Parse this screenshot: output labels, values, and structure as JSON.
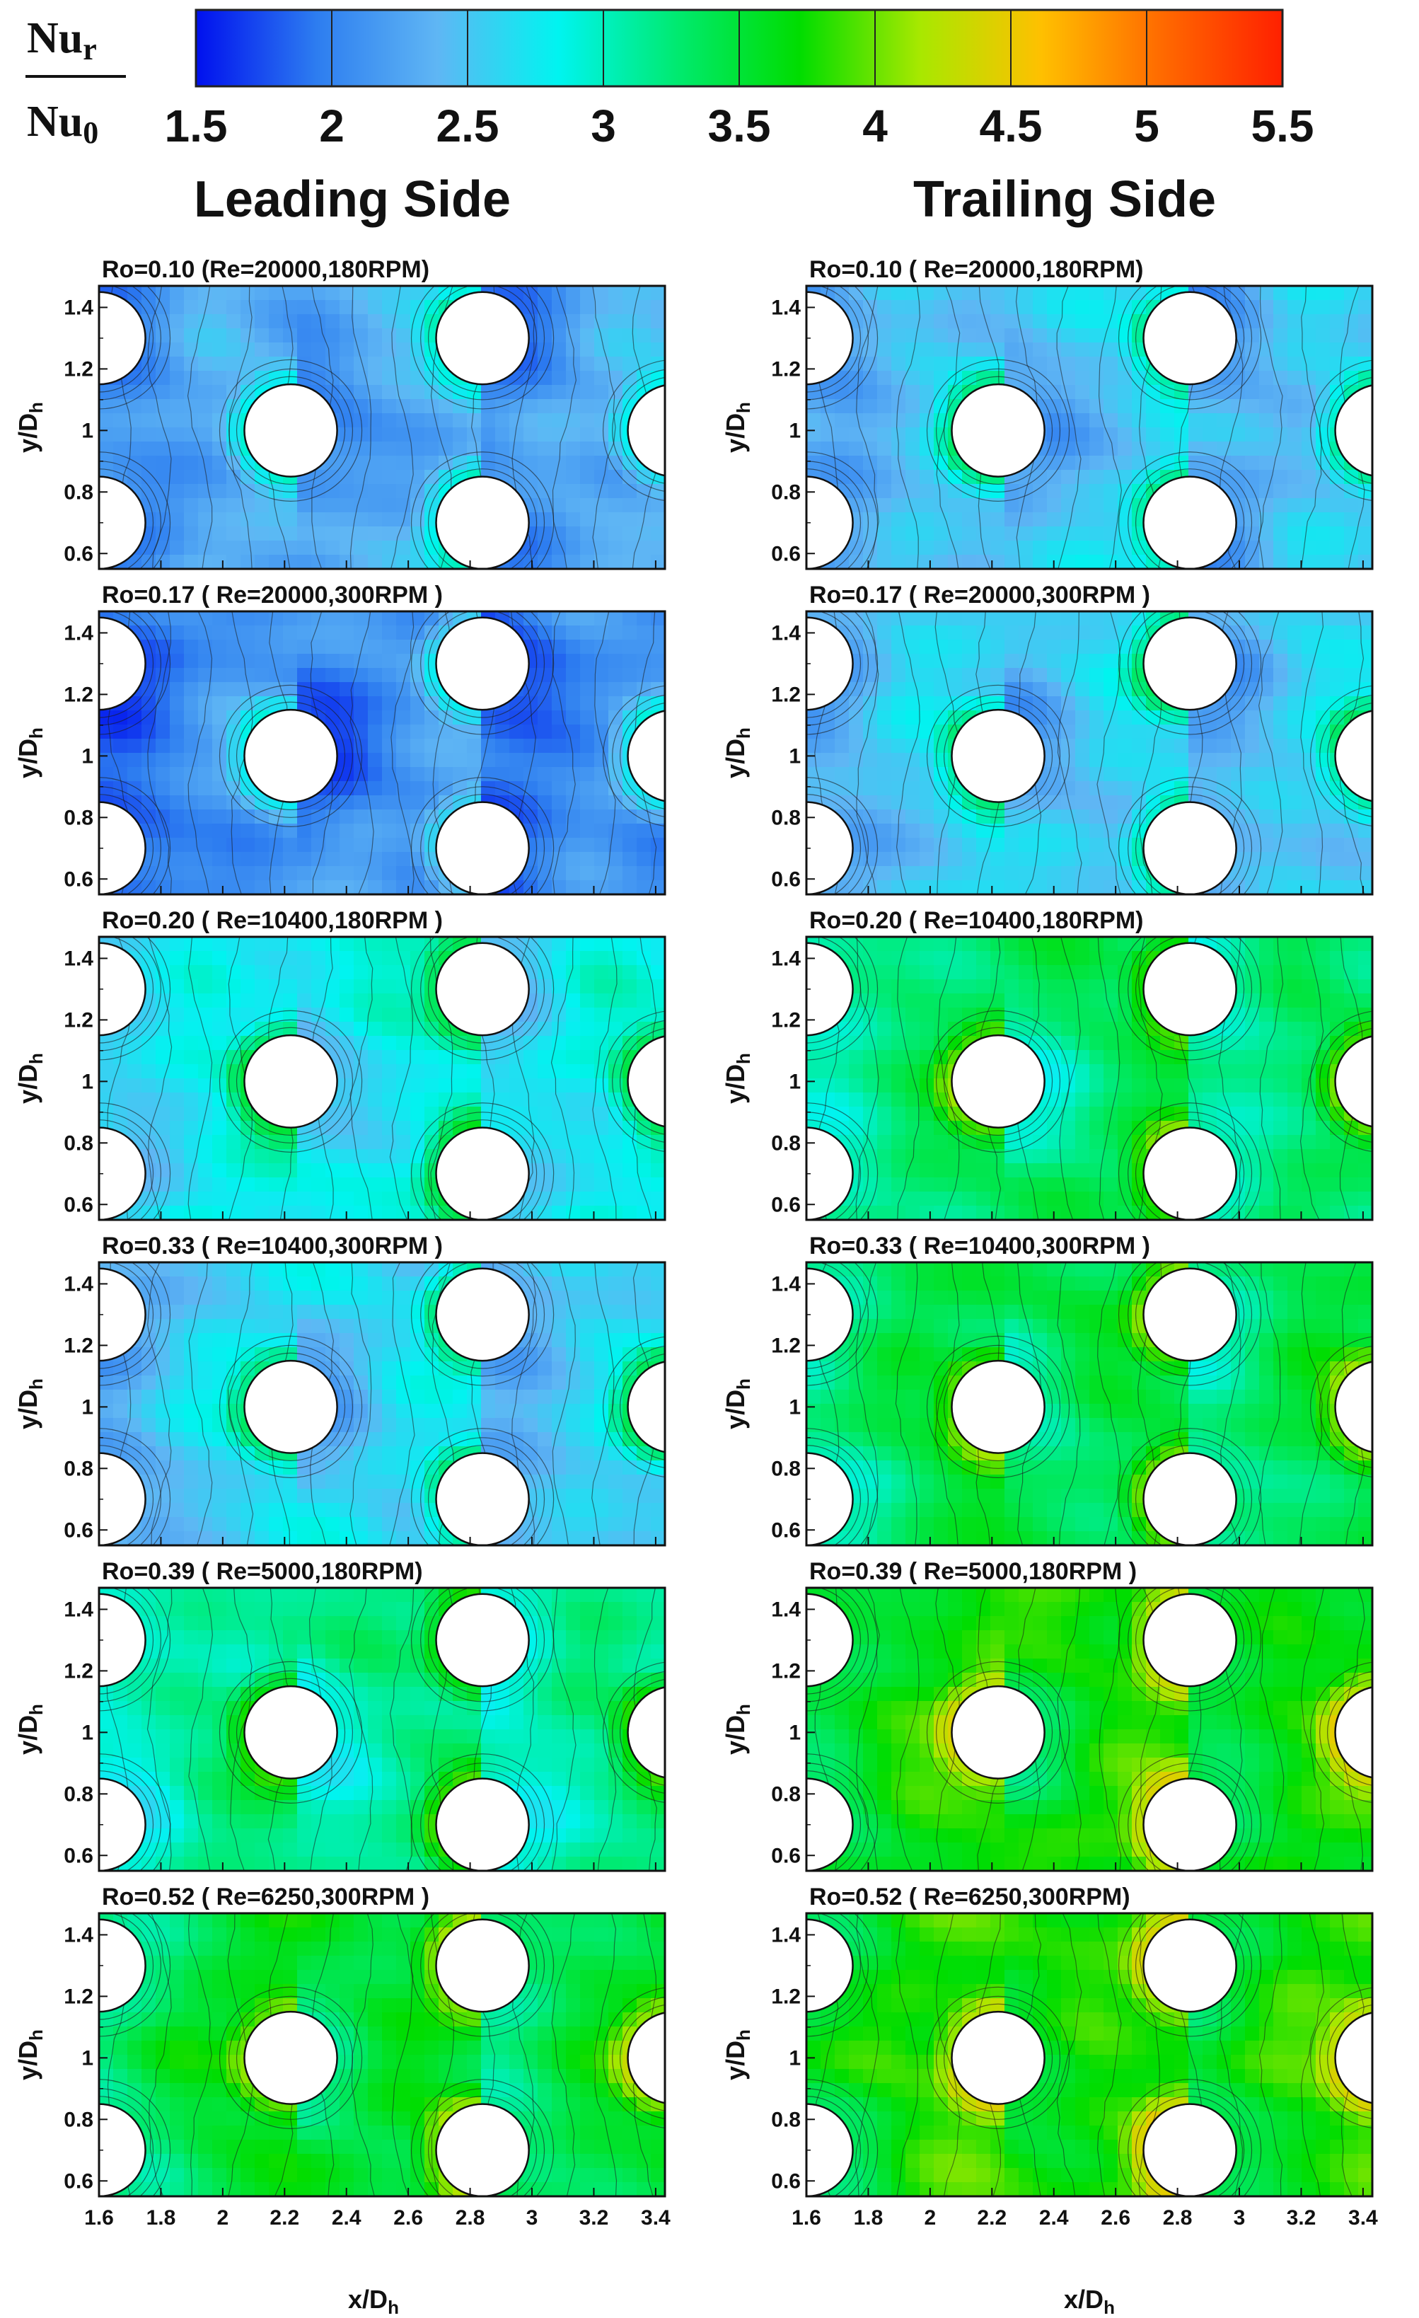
{
  "chart_data": {
    "type": "heatmap",
    "legend": {
      "title_numerator": "Nu",
      "title_numerator_sub": "r",
      "title_denominator": "Nu",
      "title_denominator_sub": "0",
      "ticks": [
        "1.5",
        "2",
        "2.5",
        "3",
        "3.5",
        "4",
        "4.5",
        "5",
        "5.5"
      ],
      "range": [
        1.5,
        5.5
      ],
      "colors": [
        "#0010ee",
        "#2d7df0",
        "#5fb6f4",
        "#00f4f0",
        "#00ea6e",
        "#00dd00",
        "#a8e800",
        "#ffc000",
        "#ff6a00",
        "#ff2000"
      ]
    },
    "column_titles": [
      "Leading Side",
      "Trailing Side"
    ],
    "xlabel": "x/D",
    "xlabel_sub": "h",
    "ylabel": "y/D",
    "ylabel_sub": "h",
    "x_ticks": [
      "1.6",
      "1.8",
      "2",
      "2.2",
      "2.4",
      "2.6",
      "2.8",
      "3",
      "3.2",
      "3.4"
    ],
    "y_ticks": [
      "0.6",
      "0.8",
      "1",
      "1.2",
      "1.4"
    ],
    "xlim": [
      1.6,
      3.43
    ],
    "ylim": [
      0.55,
      1.47
    ],
    "pin_fins": [
      {
        "x": 1.6,
        "y": 1.3
      },
      {
        "x": 1.6,
        "y": 0.7
      },
      {
        "x": 2.22,
        "y": 1.0
      },
      {
        "x": 2.84,
        "y": 1.3
      },
      {
        "x": 2.84,
        "y": 0.7
      },
      {
        "x": 3.46,
        "y": 1.0
      }
    ],
    "pin_radius": 0.15,
    "rows": [
      {
        "leading_title": "Ro=0.10 (Re=20000,180RPM)",
        "trailing_title": "Ro=0.10 ( Re=20000,180RPM)",
        "leading_mean": 2.35,
        "trailing_mean": 2.55
      },
      {
        "leading_title": "Ro=0.17 ( Re=20000,300RPM )",
        "trailing_title": "Ro=0.17 ( Re=20000,300RPM )",
        "leading_mean": 2.15,
        "trailing_mean": 2.6
      },
      {
        "leading_title": "Ro=0.20 ( Re=10400,180RPM )",
        "trailing_title": "Ro=0.20 ( Re=10400,180RPM)",
        "leading_mean": 2.85,
        "trailing_mean": 3.35
      },
      {
        "leading_title": "Ro=0.33 ( Re=10400,300RPM )",
        "trailing_title": "Ro=0.33 ( Re=10400,300RPM )",
        "leading_mean": 2.65,
        "trailing_mean": 3.45
      },
      {
        "leading_title": "Ro=0.39 ( Re=5000,180RPM)",
        "trailing_title": "Ro=0.39 ( Re=5000,180RPM )",
        "leading_mean": 3.2,
        "trailing_mean": 3.75
      },
      {
        "leading_title": "Ro=0.52 ( Re=6250,300RPM )",
        "trailing_title": "Ro=0.52 ( Re=6250,300RPM)",
        "leading_mean": 3.55,
        "trailing_mean": 3.8
      }
    ]
  }
}
